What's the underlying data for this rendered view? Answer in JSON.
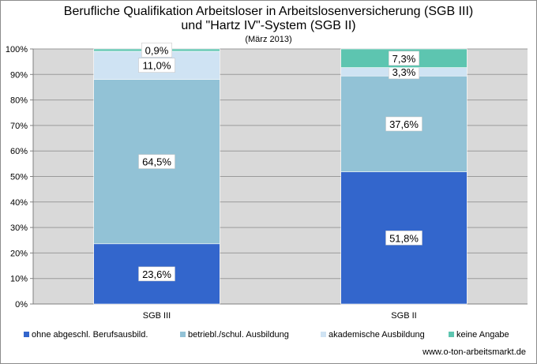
{
  "header": {
    "title_line1": "Berufliche Qualifikation Arbeitsloser in Arbeitslosenversicherung (SGB III)",
    "title_line2": "und \"Hartz IV\"-System (SGB II)",
    "subtitle": "(März 2013)"
  },
  "source": "www.o-ton-arbeitsmarkt.de",
  "chart_data": {
    "type": "bar",
    "stacked": true,
    "categories": [
      "SGB III",
      "SGB II"
    ],
    "ylim": [
      0,
      100
    ],
    "yticks": [
      "0%",
      "10%",
      "20%",
      "30%",
      "40%",
      "50%",
      "60%",
      "70%",
      "80%",
      "90%",
      "100%"
    ],
    "grid": true,
    "legend_position": "bottom",
    "series": [
      {
        "name": "ohne abgeschl. Berufsausbild.",
        "values": [
          23.6,
          51.8
        ],
        "labels": [
          "23,6%",
          "51,8%"
        ],
        "color": "#3366cc"
      },
      {
        "name": "betriebl./schul. Ausbildung",
        "values": [
          64.5,
          37.6
        ],
        "labels": [
          "64,5%",
          "37,6%"
        ],
        "color": "#92c2d6"
      },
      {
        "name": "akademische Ausbildung",
        "values": [
          11.0,
          3.3
        ],
        "labels": [
          "11,0%",
          "3,3%"
        ],
        "color": "#cfe3f3"
      },
      {
        "name": "keine Angabe",
        "values": [
          0.9,
          7.3
        ],
        "labels": [
          "0,9%",
          "7,3%"
        ],
        "color": "#5dc5b0"
      }
    ]
  }
}
